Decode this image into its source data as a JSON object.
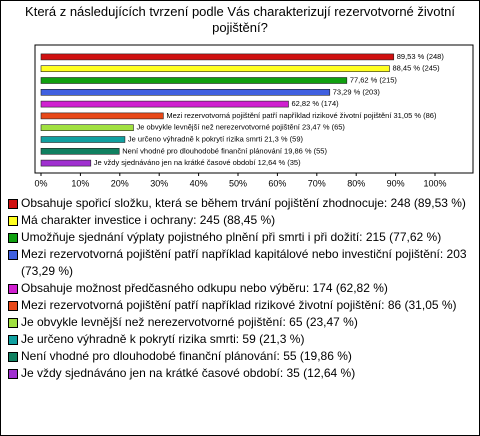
{
  "chart_data": {
    "type": "bar",
    "orientation": "horizontal",
    "title": "Která z následujících tvrzení podle Vás charakterizují rezervotvorné životní pojištění?",
    "categories": [
      "Obsahuje spořicí složku, která se během trvání pojištění zhodnocuje: 248 (89,53 %)",
      "Má charakter investice i ochrany: 245 (88,45 %)",
      "Umožňuje sjednání výplaty pojistného plnění při smrti i při dožití: 215 (77,62 %)",
      "Mezi rezervotvorná pojištění patří například kapitálové nebo investiční pojištění: 203 (73,29 %)",
      "Obsahuje možnost předčasného odkupu nebo výběru: 174 (62,82 %)",
      "Mezi rezervotvorná pojištění patří například rizikové životní pojištění: 86 (31,05 %)",
      "Je obvykle levnější než nerezervotvorné pojištění: 65 (23,47 %)",
      "Je určeno výhradně k pokrytí rizika smrti: 59 (21,3 %)",
      "Není vhodné pro dlouhodobé finanční plánování: 55 (19,86 %)",
      "Je vždy sjednáváno jen na krátké časové období: 35 (12,64 %)"
    ],
    "values": [
      89.53,
      88.45,
      77.62,
      73.29,
      62.82,
      31.05,
      23.47,
      21.3,
      19.86,
      12.64
    ],
    "value_labels": [
      "89,53 % (248)",
      "88,45 % (245)",
      "77,62 % (215)",
      "73,29 % (203)",
      "62,82 % (174)",
      "Mezi rezervotvorná pojištění patří například rizikové životní pojištění 31,05 % (86)",
      "Je obvykle levnější než nerezervotvorné pojištění 23,47 % (65)",
      "Je určeno výhradně k pokrytí rizika smrti 21,3 % (59)",
      "Není vhodné pro dlouhodobé finanční plánování 19,86 % (55)",
      "Je vždy sjednáváno jen na krátké časové období 12,64 % (35)"
    ],
    "colors": [
      "#d01010",
      "#ffff20",
      "#10a010",
      "#4060e0",
      "#d020d0",
      "#e84818",
      "#a0e040",
      "#10a0a0",
      "#108060",
      "#a030d0"
    ],
    "xlim": [
      0,
      100
    ],
    "xticks": [
      {
        "value": 0,
        "label": "0%"
      },
      {
        "value": 10,
        "label": "10%"
      },
      {
        "value": 20,
        "label": "20%"
      },
      {
        "value": 30,
        "label": "30%"
      },
      {
        "value": 40,
        "label": "40%"
      },
      {
        "value": 50,
        "label": "50%"
      },
      {
        "value": 60,
        "label": "60%"
      },
      {
        "value": 70,
        "label": "70%"
      },
      {
        "value": 80,
        "label": "80%"
      },
      {
        "value": 90,
        "label": "90%"
      },
      {
        "value": 100,
        "label": "100%"
      }
    ]
  }
}
